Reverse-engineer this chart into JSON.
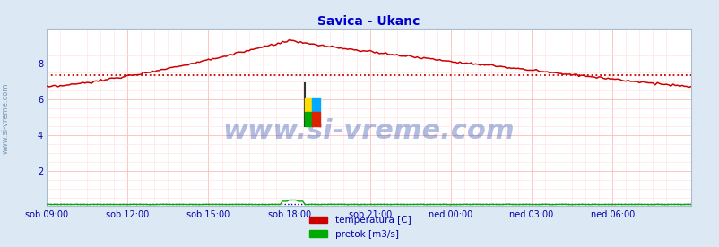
{
  "title": "Savica - Ukanc",
  "title_color": "#0000cc",
  "title_fontsize": 10,
  "bg_color": "#dce9f5",
  "plot_bg_color": "#ffffff",
  "grid_color_major": "#ffbbbb",
  "grid_color_minor": "#ffdddd",
  "tick_color": "#0000aa",
  "tick_fontsize": 7,
  "watermark": "www.si-vreme.com",
  "watermark_color": "#2244aa",
  "watermark_fontsize": 22,
  "watermark_alpha": 0.35,
  "xlim": [
    0,
    287
  ],
  "ylim": [
    0,
    10
  ],
  "yticks": [
    2,
    4,
    6,
    8
  ],
  "xtick_labels": [
    "sob 09:00",
    "sob 12:00",
    "sob 15:00",
    "sob 18:00",
    "sob 21:00",
    "ned 00:00",
    "ned 03:00",
    "ned 06:00"
  ],
  "xtick_positions": [
    0,
    36,
    72,
    108,
    144,
    180,
    216,
    252
  ],
  "avg_line_value": 7.35,
  "avg_line_color": "#cc0000",
  "temp_color": "#cc0000",
  "flow_color": "#00aa00",
  "flow_avg_color": "#0000bb",
  "left_label_color": "#6688aa",
  "legend_temp_label": "temperatura [C]",
  "legend_flow_label": "pretok [m3/s]",
  "legend_temp_color": "#cc0000",
  "legend_flow_color": "#00aa00",
  "arrow_color": "#cc0000",
  "flow_avg_value": 0.12
}
